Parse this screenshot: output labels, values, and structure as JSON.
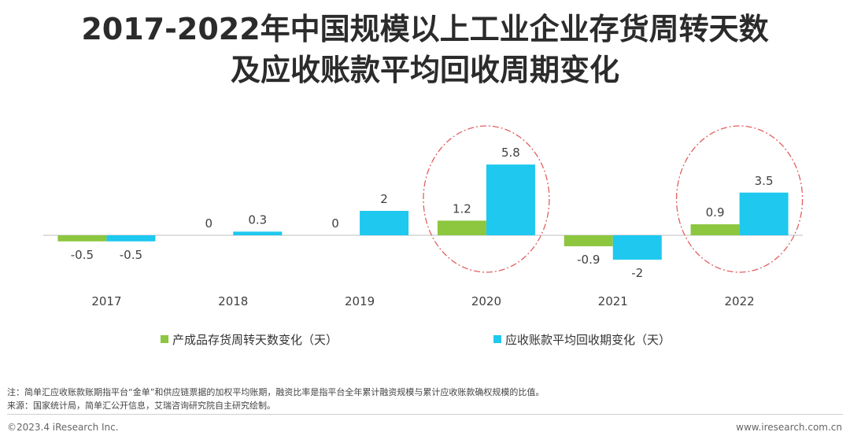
{
  "title": {
    "line1": "2017-2022年中国规模以上工业企业存货周转天数",
    "line2": "及应收账款平均回收周期变化"
  },
  "chart_data": {
    "type": "bar",
    "categories": [
      "2017",
      "2018",
      "2019",
      "2020",
      "2021",
      "2022"
    ],
    "series": [
      {
        "name": "产成品存货周转天数变化（天）",
        "values": [
          -0.5,
          0,
          0,
          1.2,
          -0.9,
          0.9
        ],
        "color": "#8dc63f"
      },
      {
        "name": "应收账款平均回收期变化（天）",
        "values": [
          -0.5,
          0.3,
          2,
          5.8,
          -2,
          3.5
        ],
        "color": "#1ec8ef"
      }
    ],
    "data_labels": [
      [
        "-0.5",
        "0",
        "0",
        "1.2",
        "-0.9",
        "0.9"
      ],
      [
        "-0.5",
        "0.3",
        "2",
        "5.8",
        "-2",
        "3.5"
      ]
    ],
    "highlighted_categories": [
      "2020",
      "2022"
    ],
    "highlight_color": "#e06060",
    "grid": false,
    "legend_position": "bottom"
  },
  "footnotes": {
    "note": "注：简单汇应收账款账期指平台“金单”和供应链票据的加权平均账期，融资比率是指平台全年累计融资规模与累计应收账款确权规模的比值。",
    "source": "来源：国家统计局，简单汇公开信息，艾瑞咨询研究院自主研究绘制。"
  },
  "footer": {
    "copyright": "©2023.4 iResearch Inc.",
    "website": "www.iresearch.com.cn"
  }
}
